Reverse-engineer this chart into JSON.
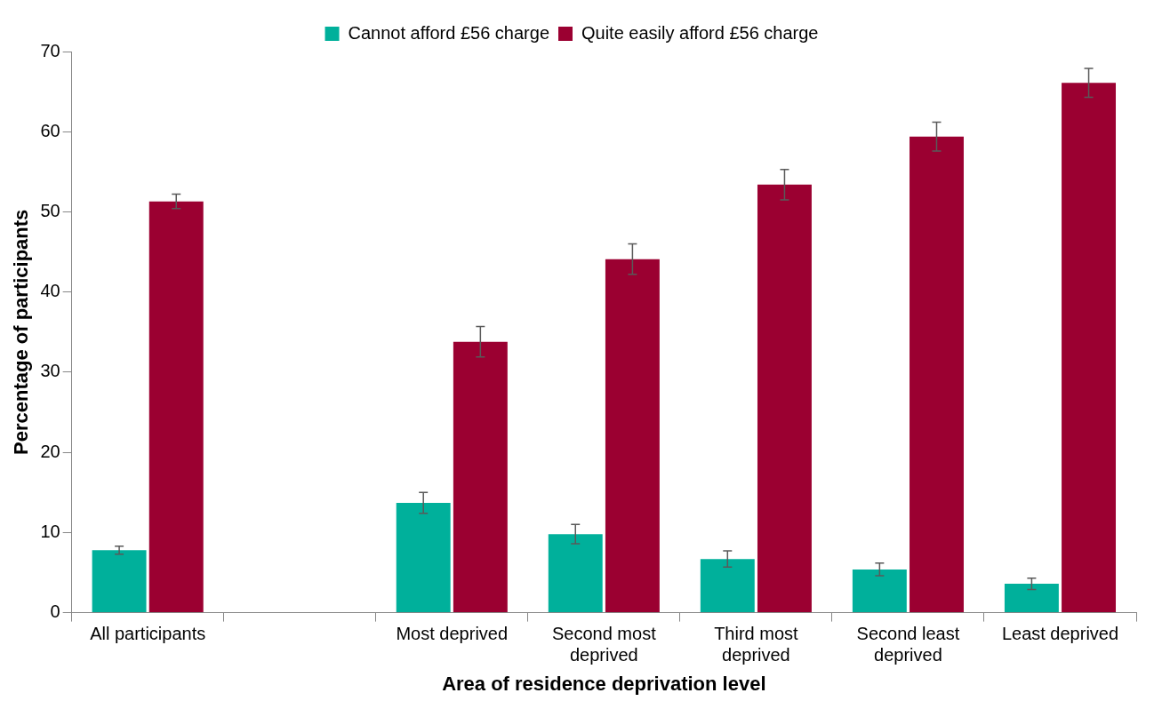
{
  "chart_data": {
    "type": "bar",
    "xlabel": "Area of residence deprivation level",
    "ylabel": "Percentage of participants",
    "categories": [
      "All participants",
      null,
      "Most deprived",
      "Second most deprived",
      "Third most deprived",
      "Second least deprived",
      "Least deprived"
    ],
    "series": [
      {
        "name": "Cannot afford £56 charge",
        "color": "#00b09b",
        "values": [
          7.8,
          null,
          13.7,
          9.8,
          6.7,
          5.4,
          3.6
        ],
        "errors": [
          0.5,
          null,
          1.3,
          1.2,
          1.0,
          0.8,
          0.7
        ]
      },
      {
        "name": "Quite easily afford £56 charge",
        "color": "#9b0031",
        "values": [
          51.3,
          null,
          33.8,
          44.1,
          53.4,
          59.4,
          66.1
        ],
        "errors": [
          0.9,
          null,
          1.9,
          1.9,
          1.9,
          1.8,
          1.8
        ]
      }
    ],
    "ylim": [
      0,
      70
    ],
    "yticks": [
      0,
      10,
      20,
      30,
      40,
      50,
      60,
      70
    ],
    "grid": false,
    "legend": "top"
  }
}
